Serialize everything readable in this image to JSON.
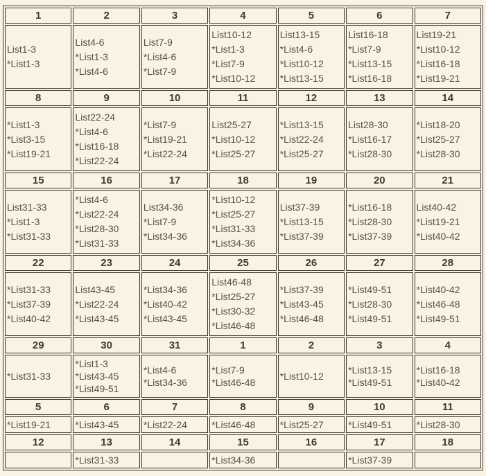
{
  "colors": {
    "page_bg": "#faf3e4",
    "border": "#35352c",
    "header_text": "#3b3b31",
    "cell_text": "#52524a"
  },
  "weeks": [
    {
      "headers": [
        "1",
        "2",
        "3",
        "4",
        "5",
        "6",
        "7"
      ],
      "cells": [
        [
          "List1-3",
          "*List1-3"
        ],
        [
          "List4-6",
          "*List1-3",
          "*List4-6"
        ],
        [
          "List7-9",
          "*List4-6",
          "*List7-9"
        ],
        [
          "List10-12",
          "*List1-3",
          "*List7-9",
          "*List10-12"
        ],
        [
          "List13-15",
          "*List4-6",
          "*List10-12",
          "*List13-15"
        ],
        [
          "List16-18",
          "*List7-9",
          "*List13-15",
          "*List16-18"
        ],
        [
          "List19-21",
          "*List10-12",
          "*List16-18",
          "*List19-21"
        ]
      ]
    },
    {
      "headers": [
        "8",
        "9",
        "10",
        "11",
        "12",
        "13",
        "14"
      ],
      "cells": [
        [
          "*List1-3",
          "*List3-15",
          "*List19-21"
        ],
        [
          "List22-24",
          "*List4-6",
          "*List16-18",
          "*List22-24"
        ],
        [
          "*List7-9",
          "*List19-21",
          "*List22-24"
        ],
        [
          "List25-27",
          "*List10-12",
          "*List25-27"
        ],
        [
          "*List13-15",
          "*List22-24",
          "*List25-27"
        ],
        [
          "List28-30",
          "*List16-17",
          "*List28-30"
        ],
        [
          "*List18-20",
          "*List25-27",
          "*List28-30"
        ]
      ]
    },
    {
      "headers": [
        "15",
        "16",
        "17",
        "18",
        "19",
        "20",
        "21"
      ],
      "cells": [
        [
          "List31-33",
          "*List1-3",
          "*List31-33"
        ],
        [
          "*List4-6",
          "*List22-24",
          "*List28-30",
          "*List31-33"
        ],
        [
          "List34-36",
          "*List7-9",
          "*List34-36"
        ],
        [
          "*List10-12",
          "*List25-27",
          "*List31-33",
          "*List34-36"
        ],
        [
          "List37-39",
          "*List13-15",
          "*List37-39"
        ],
        [
          "*List16-18",
          "*List28-30",
          "*List37-39"
        ],
        [
          "List40-42",
          "*List19-21",
          "*List40-42"
        ]
      ]
    },
    {
      "headers": [
        "22",
        "23",
        "24",
        "25",
        "26",
        "27",
        "28"
      ],
      "cells": [
        [
          "*List31-33",
          "*List37-39",
          "*List40-42"
        ],
        [
          "List43-45",
          "*List22-24",
          "*List43-45"
        ],
        [
          "*List34-36",
          "*List40-42",
          "*List43-45"
        ],
        [
          "List46-48",
          "*List25-27",
          "*List30-32",
          "*List46-48"
        ],
        [
          "*List37-39",
          "*List43-45",
          "*List46-48"
        ],
        [
          "*List49-51",
          "*List28-30",
          "*List49-51"
        ],
        [
          "*List40-42",
          "*List46-48",
          "*List49-51"
        ]
      ]
    },
    {
      "headers": [
        "29",
        "30",
        "31",
        "1",
        "2",
        "3",
        "4"
      ],
      "cells": [
        [
          "*List31-33"
        ],
        [
          "*List1-3",
          "*List43-45",
          "*List49-51"
        ],
        [
          "*List4-6",
          "*List34-36"
        ],
        [
          "*List7-9",
          "*List46-48"
        ],
        [
          "*List10-12"
        ],
        [
          "*List13-15",
          "*List49-51"
        ],
        [
          "*List16-18",
          "*List40-42"
        ]
      ]
    },
    {
      "headers": [
        "5",
        "6",
        "7",
        "8",
        "9",
        "10",
        "11"
      ],
      "cells": [
        [
          "*List19-21"
        ],
        [
          "*List43-45"
        ],
        [
          "*List22-24"
        ],
        [
          "*List46-48"
        ],
        [
          "*List25-27"
        ],
        [
          "*List49-51"
        ],
        [
          "*List28-30"
        ]
      ]
    },
    {
      "headers": [
        "12",
        "13",
        "14",
        "15",
        "16",
        "17",
        "18"
      ],
      "cells": [
        [],
        [
          "*List31-33"
        ],
        [],
        [
          "*List34-36"
        ],
        [],
        [
          "*List37-39"
        ],
        []
      ]
    }
  ]
}
